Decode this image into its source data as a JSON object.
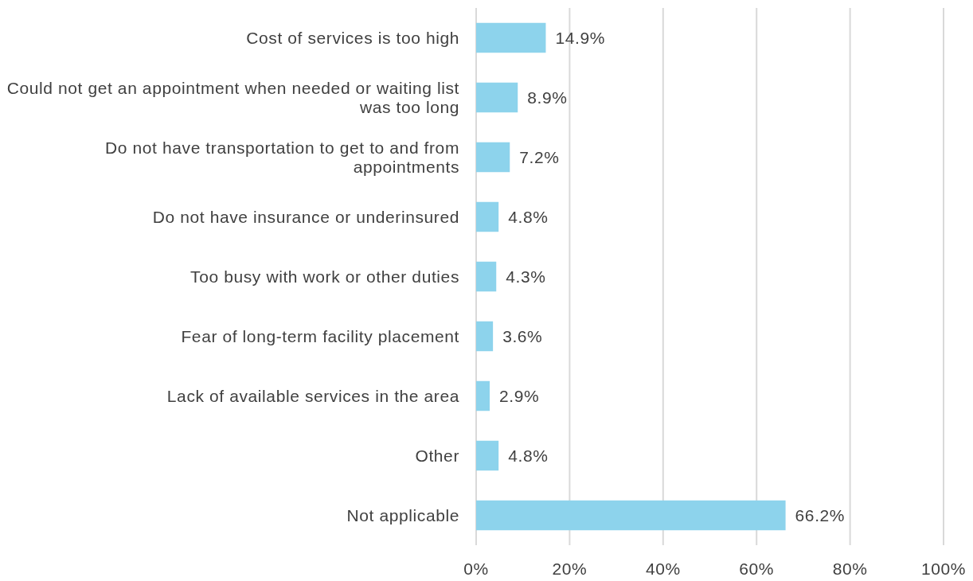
{
  "chart_data": {
    "type": "bar",
    "orientation": "horizontal",
    "categories": [
      "Cost of services is too high",
      "Could not get an appointment when needed or waiting list was too long",
      "Do not have transportation to get to and from appointments",
      "Do not have insurance or underinsured",
      "Too busy with work or other duties",
      "Fear of long-term facility placement",
      "Lack of available services in the area",
      "Other",
      "Not applicable"
    ],
    "values": [
      14.9,
      8.9,
      7.2,
      4.8,
      4.3,
      3.6,
      2.9,
      4.8,
      66.2
    ],
    "value_labels": [
      "14.9%",
      "8.9%",
      "7.2%",
      "4.8%",
      "4.3%",
      "3.6%",
      "2.9%",
      "4.8%",
      "66.2%"
    ],
    "color": "#8dd3ec",
    "xlim": [
      0,
      100
    ],
    "xticks": [
      {
        "value": 0,
        "label": "0%"
      },
      {
        "value": 20,
        "label": "20%"
      },
      {
        "value": 40,
        "label": "40%"
      },
      {
        "value": 60,
        "label": "60%"
      },
      {
        "value": 80,
        "label": "80%"
      },
      {
        "value": 100,
        "label": "100%"
      }
    ],
    "grid": "x"
  }
}
